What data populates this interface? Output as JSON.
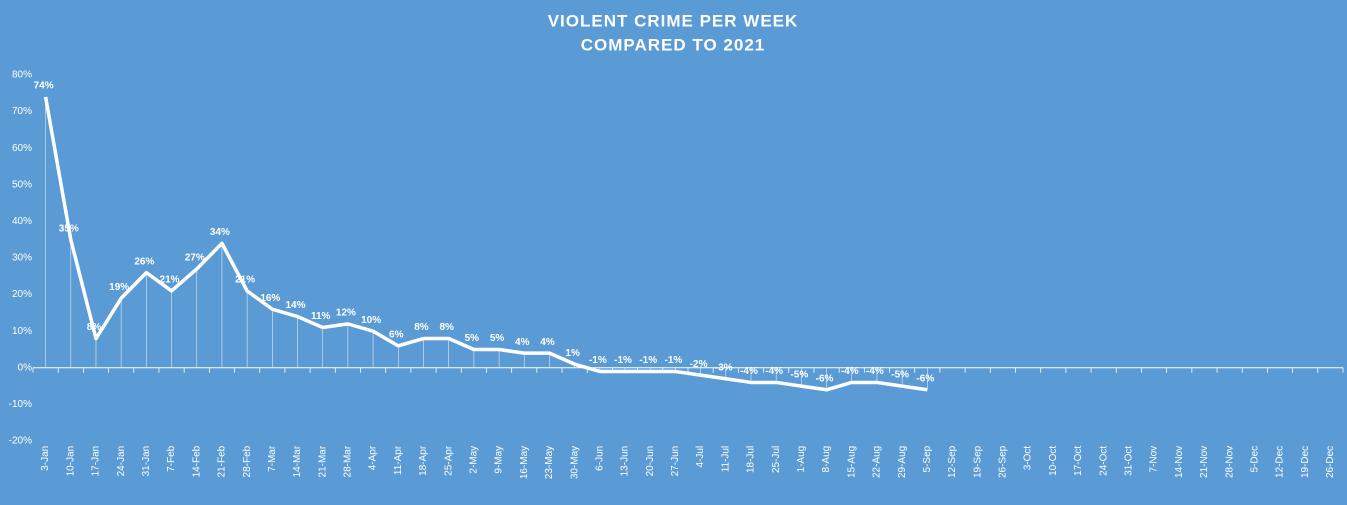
{
  "chart_data": {
    "type": "line",
    "title": "VIOLENT CRIME PER WEEK",
    "subtitle": "COMPARED TO 2021",
    "categories": [
      "3-Jan",
      "10-Jan",
      "17-Jan",
      "24-Jan",
      "31-Jan",
      "7-Feb",
      "14-Feb",
      "21-Feb",
      "28-Feb",
      "7-Mar",
      "14-Mar",
      "21-Mar",
      "28-Mar",
      "4-Apr",
      "11-Apr",
      "18-Apr",
      "25-Apr",
      "2-May",
      "9-May",
      "16-May",
      "23-May",
      "30-May",
      "6-Jun",
      "13-Jun",
      "20-Jun",
      "27-Jun",
      "4-Jul",
      "11-Jul",
      "18-Jul",
      "25-Jul",
      "1-Aug",
      "8-Aug",
      "15-Aug",
      "22-Aug",
      "29-Aug",
      "5-Sep",
      "12-Sep",
      "19-Sep",
      "26-Sep",
      "3-Oct",
      "10-Oct",
      "17-Oct",
      "24-Oct",
      "31-Oct",
      "7-Nov",
      "14-Nov",
      "21-Nov",
      "28-Nov",
      "5-Dec",
      "12-Dec",
      "19-Dec",
      "26-Dec"
    ],
    "values": [
      74,
      35,
      8,
      19,
      26,
      21,
      27,
      34,
      21,
      16,
      14,
      11,
      12,
      10,
      6,
      8,
      8,
      5,
      5,
      4,
      4,
      1,
      -1,
      -1,
      -1,
      -1,
      -2,
      -3,
      -4,
      -4,
      -5,
      -6,
      -4,
      -4,
      -5,
      -6,
      null,
      null,
      null,
      null,
      null,
      null,
      null,
      null,
      null,
      null,
      null,
      null,
      null,
      null,
      null,
      null
    ],
    "value_labels": [
      "74%",
      "35%",
      "8%",
      "19%",
      "26%",
      "21%",
      "27%",
      "34%",
      "21%",
      "16%",
      "14%",
      "11%",
      "12%",
      "10%",
      "6%",
      "8%",
      "8%",
      "5%",
      "5%",
      "4%",
      "4%",
      "1%",
      "-1%",
      "-1%",
      "-1%",
      "-1%",
      "-2%",
      "-3%",
      "-4%",
      "-4%",
      "-5%",
      "-6%",
      "-4%",
      "-4%",
      "-5%",
      "-6%",
      null,
      null,
      null,
      null,
      null,
      null,
      null,
      null,
      null,
      null,
      null,
      null,
      null,
      null,
      null,
      null
    ],
    "color": "#ffffff",
    "ylim": [
      -20,
      80
    ],
    "yticks": [
      {
        "value": -20,
        "label": "-20%"
      },
      {
        "value": -10,
        "label": "-10%"
      },
      {
        "value": 0,
        "label": "0%"
      },
      {
        "value": 10,
        "label": "10%"
      },
      {
        "value": 20,
        "label": "20%"
      },
      {
        "value": 30,
        "label": "30%"
      },
      {
        "value": 40,
        "label": "40%"
      },
      {
        "value": 50,
        "label": "50%"
      },
      {
        "value": 60,
        "label": "60%"
      },
      {
        "value": 70,
        "label": "70%"
      },
      {
        "value": 80,
        "label": "80%"
      }
    ],
    "grid": false
  }
}
